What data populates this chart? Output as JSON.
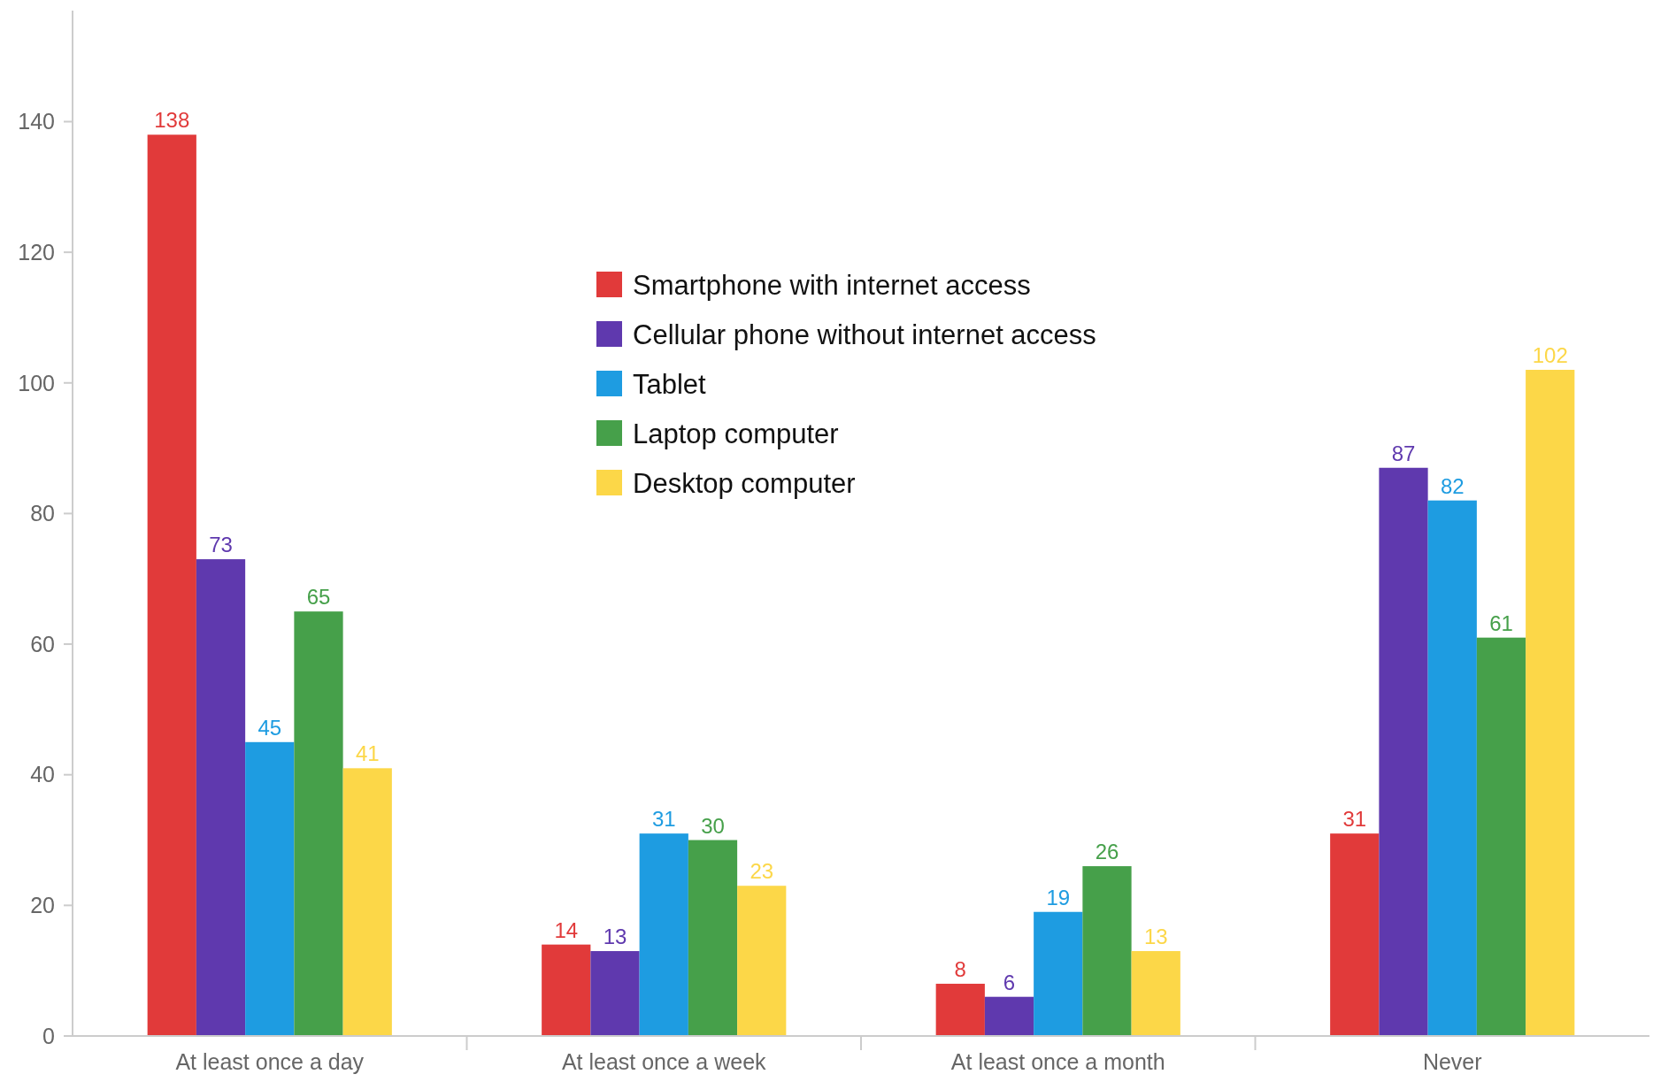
{
  "chart_data": {
    "type": "bar",
    "categories": [
      "At least once a day",
      "At least once a week",
      "At least once a month",
      "Never"
    ],
    "series": [
      {
        "name": "Smartphone with internet access",
        "color": "#e13a3a",
        "values": [
          138,
          14,
          8,
          31
        ]
      },
      {
        "name": "Cellular phone without internet access",
        "color": "#5f39ae",
        "values": [
          73,
          13,
          6,
          87
        ]
      },
      {
        "name": "Tablet",
        "color": "#1e9ce1",
        "values": [
          45,
          31,
          19,
          82
        ]
      },
      {
        "name": "Laptop computer",
        "color": "#46a04a",
        "values": [
          65,
          30,
          26,
          61
        ]
      },
      {
        "name": "Desktop computer",
        "color": "#fcd748",
        "values": [
          41,
          23,
          13,
          102
        ]
      }
    ],
    "ylim": [
      0,
      157
    ],
    "yticks": [
      0,
      20,
      40,
      60,
      80,
      100,
      120,
      140
    ],
    "grid": false,
    "legend": "top",
    "data_labels": true
  }
}
